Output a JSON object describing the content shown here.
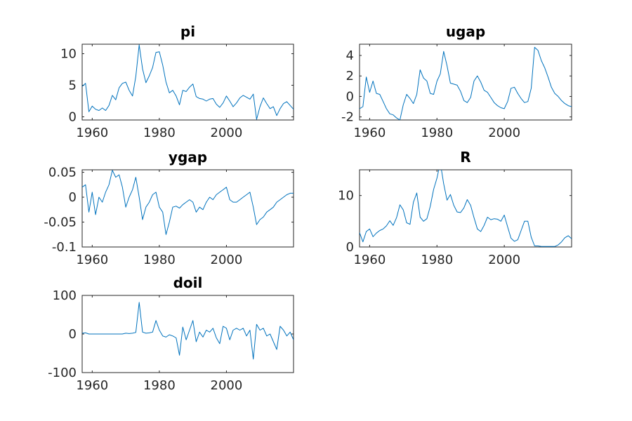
{
  "chart_data": [
    {
      "type": "line",
      "title": "pi",
      "color": "#0072BD",
      "xlim": [
        1957,
        2020
      ],
      "ylim": [
        -0.5,
        11.5
      ],
      "xticks": [
        1960,
        1980,
        2000
      ],
      "xtick_labels": [
        "1960",
        "1980",
        "2000"
      ],
      "yticks": [
        0,
        5,
        10
      ],
      "ytick_labels": [
        "0",
        "5",
        "10"
      ],
      "x": [
        1957,
        1958,
        1959,
        1960,
        1961,
        1962,
        1963,
        1964,
        1965,
        1966,
        1967,
        1968,
        1969,
        1970,
        1971,
        1972,
        1973,
        1974,
        1975,
        1976,
        1977,
        1978,
        1979,
        1980,
        1981,
        1982,
        1983,
        1984,
        1985,
        1986,
        1987,
        1988,
        1989,
        1990,
        1991,
        1992,
        1993,
        1994,
        1995,
        1996,
        1997,
        1998,
        1999,
        2000,
        2001,
        2002,
        2003,
        2004,
        2005,
        2006,
        2007,
        2008,
        2009,
        2010,
        2011,
        2012,
        2013,
        2014,
        2015,
        2016,
        2017,
        2018,
        2019,
        2020
      ],
      "y": [
        4.8,
        5.3,
        0.8,
        1.7,
        1.2,
        1.0,
        1.4,
        1.0,
        1.8,
        3.4,
        2.7,
        4.6,
        5.3,
        5.5,
        4.2,
        3.3,
        6.4,
        11.4,
        7.6,
        5.4,
        6.5,
        7.8,
        10.2,
        10.3,
        8.2,
        5.5,
        3.8,
        4.2,
        3.3,
        1.9,
        4.2,
        4.0,
        4.7,
        5.2,
        3.2,
        2.9,
        2.8,
        2.5,
        2.8,
        2.9,
        2.0,
        1.5,
        2.2,
        3.3,
        2.5,
        1.6,
        2.2,
        3.0,
        3.4,
        3.1,
        2.8,
        3.6,
        -0.4,
        1.6,
        3.0,
        2.1,
        1.3,
        1.6,
        0.2,
        1.3,
        2.1,
        2.4,
        1.8,
        1.2
      ]
    },
    {
      "type": "line",
      "title": "ugap",
      "color": "#0072BD",
      "xlim": [
        1957,
        2020
      ],
      "ylim": [
        -2.3,
        5.1
      ],
      "xticks": [
        1960,
        1980,
        2000
      ],
      "xtick_labels": [
        "1960",
        "1980",
        "2000"
      ],
      "yticks": [
        -2,
        0,
        2,
        4
      ],
      "ytick_labels": [
        "-2",
        "0",
        "2",
        "4"
      ],
      "x": [
        1957,
        1958,
        1959,
        1960,
        1961,
        1962,
        1963,
        1964,
        1965,
        1966,
        1967,
        1968,
        1969,
        1970,
        1971,
        1972,
        1973,
        1974,
        1975,
        1976,
        1977,
        1978,
        1979,
        1980,
        1981,
        1982,
        1983,
        1984,
        1985,
        1986,
        1987,
        1988,
        1989,
        1990,
        1991,
        1992,
        1993,
        1994,
        1995,
        1996,
        1997,
        1998,
        1999,
        2000,
        2001,
        2002,
        2003,
        2004,
        2005,
        2006,
        2007,
        2008,
        2009,
        2010,
        2011,
        2012,
        2013,
        2014,
        2015,
        2016,
        2017,
        2018,
        2019,
        2020
      ],
      "y": [
        -1.2,
        -1.0,
        1.9,
        0.4,
        1.5,
        0.3,
        0.2,
        -0.5,
        -1.2,
        -1.7,
        -1.8,
        -2.1,
        -2.3,
        -0.8,
        0.2,
        -0.2,
        -0.7,
        0.2,
        2.6,
        1.8,
        1.5,
        0.3,
        0.2,
        1.5,
        2.2,
        4.4,
        3.0,
        1.3,
        1.2,
        1.1,
        0.5,
        -0.4,
        -0.6,
        -0.1,
        1.5,
        2.0,
        1.4,
        0.6,
        0.4,
        -0.1,
        -0.6,
        -0.9,
        -1.1,
        -1.2,
        -0.5,
        0.8,
        0.9,
        0.3,
        -0.2,
        -0.6,
        -0.5,
        0.8,
        4.8,
        4.5,
        3.5,
        2.8,
        1.9,
        0.9,
        0.3,
        0.0,
        -0.4,
        -0.7,
        -0.9,
        -1.0
      ]
    },
    {
      "type": "line",
      "title": "ygap",
      "color": "#0072BD",
      "xlim": [
        1957,
        2020
      ],
      "ylim": [
        -0.1,
        0.055
      ],
      "xticks": [
        1960,
        1980,
        2000
      ],
      "xtick_labels": [
        "1960",
        "1980",
        "2000"
      ],
      "yticks": [
        -0.1,
        -0.05,
        0,
        0.05
      ],
      "ytick_labels": [
        "-0.1",
        "-0.05",
        "0",
        "0.05"
      ],
      "x": [
        1957,
        1958,
        1959,
        1960,
        1961,
        1962,
        1963,
        1964,
        1965,
        1966,
        1967,
        1968,
        1969,
        1970,
        1971,
        1972,
        1973,
        1974,
        1975,
        1976,
        1977,
        1978,
        1979,
        1980,
        1981,
        1982,
        1983,
        1984,
        1985,
        1986,
        1987,
        1988,
        1989,
        1990,
        1991,
        1992,
        1993,
        1994,
        1995,
        1996,
        1997,
        1998,
        1999,
        2000,
        2001,
        2002,
        2003,
        2004,
        2005,
        2006,
        2007,
        2008,
        2009,
        2010,
        2011,
        2012,
        2013,
        2014,
        2015,
        2016,
        2017,
        2018,
        2019,
        2020
      ],
      "y": [
        0.02,
        0.025,
        -0.03,
        0.01,
        -0.035,
        0.0,
        -0.01,
        0.01,
        0.025,
        0.054,
        0.04,
        0.045,
        0.02,
        -0.02,
        0.0,
        0.015,
        0.04,
        0.0,
        -0.045,
        -0.02,
        -0.01,
        0.005,
        0.01,
        -0.02,
        -0.03,
        -0.075,
        -0.05,
        -0.02,
        -0.018,
        -0.022,
        -0.015,
        -0.01,
        -0.005,
        -0.01,
        -0.03,
        -0.02,
        -0.025,
        -0.01,
        0.0,
        -0.005,
        0.005,
        0.01,
        0.015,
        0.02,
        -0.005,
        -0.01,
        -0.01,
        -0.005,
        0.0,
        0.005,
        0.01,
        -0.02,
        -0.055,
        -0.045,
        -0.04,
        -0.03,
        -0.025,
        -0.02,
        -0.01,
        -0.005,
        0.0,
        0.005,
        0.008,
        0.008
      ]
    },
    {
      "type": "line",
      "title": "R",
      "color": "#0072BD",
      "xlim": [
        1957,
        2020
      ],
      "ylim": [
        0,
        15
      ],
      "xticks": [
        1960,
        1980,
        2000
      ],
      "xtick_labels": [
        "1960",
        "1980",
        "2000"
      ],
      "yticks": [
        0,
        10
      ],
      "ytick_labels": [
        "0",
        "10"
      ],
      "x": [
        1957,
        1958,
        1959,
        1960,
        1961,
        1962,
        1963,
        1964,
        1965,
        1966,
        1967,
        1968,
        1969,
        1970,
        1971,
        1972,
        1973,
        1974,
        1975,
        1976,
        1977,
        1978,
        1979,
        1980,
        1981,
        1982,
        1983,
        1984,
        1985,
        1986,
        1987,
        1988,
        1989,
        1990,
        1991,
        1992,
        1993,
        1994,
        1995,
        1996,
        1997,
        1998,
        1999,
        2000,
        2001,
        2002,
        2003,
        2004,
        2005,
        2006,
        2007,
        2008,
        2009,
        2010,
        2011,
        2012,
        2013,
        2014,
        2015,
        2016,
        2017,
        2018,
        2019,
        2020
      ],
      "y": [
        2.8,
        1.0,
        3.0,
        3.5,
        2.0,
        2.7,
        3.2,
        3.5,
        4.1,
        5.1,
        4.2,
        5.7,
        8.2,
        7.2,
        4.7,
        4.4,
        8.7,
        10.5,
        5.8,
        5.0,
        5.5,
        7.9,
        11.2,
        13.4,
        16.4,
        12.3,
        9.1,
        10.2,
        8.1,
        6.8,
        6.7,
        7.6,
        9.2,
        8.1,
        5.7,
        3.5,
        3.0,
        4.2,
        5.8,
        5.3,
        5.5,
        5.4,
        5.0,
        6.2,
        3.9,
        1.7,
        1.1,
        1.4,
        3.2,
        5.0,
        5.0,
        1.9,
        0.2,
        0.2,
        0.1,
        0.1,
        0.1,
        0.1,
        0.1,
        0.4,
        1.0,
        1.8,
        2.2,
        1.6
      ]
    },
    {
      "type": "line",
      "title": "doil",
      "color": "#0072BD",
      "xlim": [
        1957,
        2020
      ],
      "ylim": [
        -100,
        100
      ],
      "xticks": [
        1960,
        1980,
        2000
      ],
      "xtick_labels": [
        "1960",
        "1980",
        "2000"
      ],
      "yticks": [
        -100,
        0,
        100
      ],
      "ytick_labels": [
        "-100",
        "0",
        "100"
      ],
      "x": [
        1957,
        1958,
        1959,
        1960,
        1961,
        1962,
        1963,
        1964,
        1965,
        1966,
        1967,
        1968,
        1969,
        1970,
        1971,
        1972,
        1973,
        1974,
        1975,
        1976,
        1977,
        1978,
        1979,
        1980,
        1981,
        1982,
        1983,
        1984,
        1985,
        1986,
        1987,
        1988,
        1989,
        1990,
        1991,
        1992,
        1993,
        1994,
        1995,
        1996,
        1997,
        1998,
        1999,
        2000,
        2001,
        2002,
        2003,
        2004,
        2005,
        2006,
        2007,
        2008,
        2009,
        2010,
        2011,
        2012,
        2013,
        2014,
        2015,
        2016,
        2017,
        2018,
        2019,
        2020
      ],
      "y": [
        2,
        3,
        0,
        0,
        0,
        0,
        0,
        0,
        0,
        0,
        0,
        0,
        0,
        2,
        1,
        2,
        4,
        82,
        5,
        2,
        3,
        5,
        35,
        10,
        -5,
        -8,
        -2,
        -5,
        -10,
        -55,
        18,
        -15,
        10,
        35,
        -20,
        5,
        -8,
        10,
        5,
        15,
        -10,
        -25,
        20,
        15,
        -15,
        10,
        15,
        10,
        15,
        -5,
        10,
        -65,
        25,
        10,
        15,
        -5,
        0,
        -20,
        -40,
        20,
        10,
        -5,
        5,
        -15
      ]
    }
  ]
}
